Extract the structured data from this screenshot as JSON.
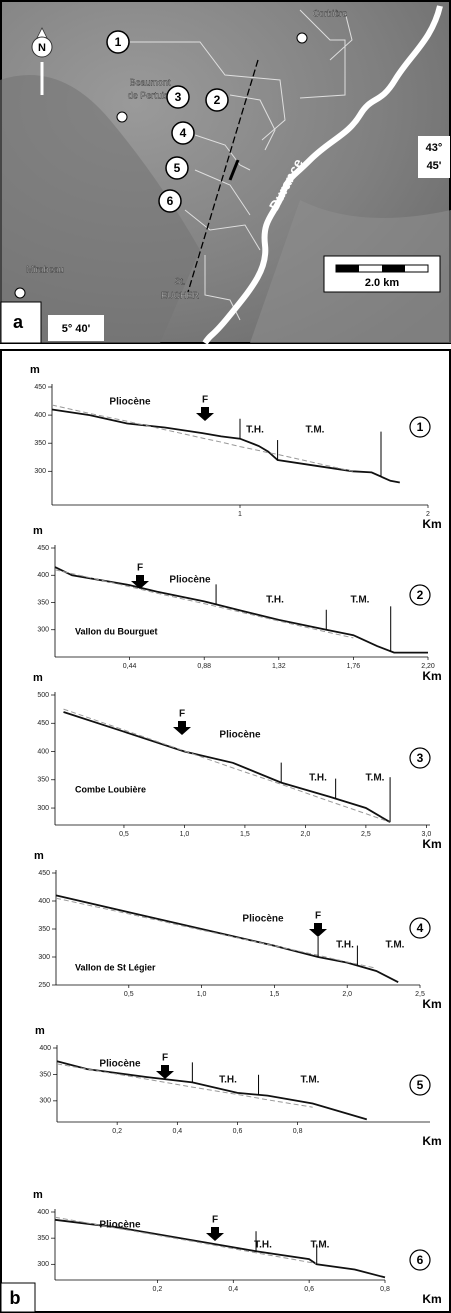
{
  "map": {
    "panel": "a",
    "north": "N",
    "places": [
      "Corbière",
      "Beaumont",
      "de Pertuis",
      "Mirabeau",
      "St.",
      "EUCHER"
    ],
    "river": "Durance",
    "latitude": [
      "43°",
      "45'"
    ],
    "longitude": "5° 40'",
    "scale": "2.0 km",
    "sites": [
      "1",
      "2",
      "3",
      "4",
      "5",
      "6"
    ]
  },
  "panel_b": "b",
  "chart_data": [
    {
      "type": "line",
      "number": "1",
      "ylabel": "m",
      "xlabel": "Km",
      "x": [
        0,
        0.2,
        0.4,
        0.6,
        0.8,
        0.9,
        1.0,
        1.1,
        1.15,
        1.2,
        1.4,
        1.6,
        1.7,
        1.8,
        1.85
      ],
      "series": [
        {
          "color": "#111111",
          "values": [
            410,
            400,
            385,
            378,
            368,
            362,
            358,
            345,
            335,
            320,
            310,
            300,
            298,
            283,
            280
          ]
        },
        {
          "color": "#999999",
          "dashed": true,
          "values": [
            418,
            403,
            389,
            374,
            359,
            352,
            344,
            337,
            333,
            330,
            315,
            300,
            null,
            null,
            null
          ]
        }
      ],
      "xlim": [
        0,
        2
      ],
      "ylim": [
        240,
        450
      ],
      "xticks": [
        1,
        2
      ],
      "yticks": [
        300,
        350,
        400,
        450
      ],
      "boundaries": [
        1.0,
        1.2,
        1.75
      ],
      "annotations": [
        "Pliocène",
        "F",
        "T.H.",
        "T.M."
      ]
    },
    {
      "type": "line",
      "number": "2",
      "ylabel": "m",
      "xlabel": "Km",
      "site": "Vallon du Bourguet",
      "x": [
        0,
        0.1,
        0.44,
        0.6,
        0.88,
        1.1,
        1.32,
        1.6,
        1.76,
        1.9,
        2.0,
        2.2
      ],
      "series": [
        {
          "color": "#111111",
          "values": [
            415,
            400,
            382,
            370,
            352,
            335,
            318,
            300,
            290,
            270,
            258,
            258
          ]
        },
        {
          "color": "#999999",
          "dashed": true,
          "values": [
            410,
            403,
            379,
            367,
            348,
            332,
            316,
            296,
            285,
            null,
            null,
            null
          ]
        }
      ],
      "xlim": [
        0,
        2.2
      ],
      "ylim": [
        250,
        450
      ],
      "xticks": [
        {
          "value": 0.44,
          "label": "0,44"
        },
        {
          "value": 0.88,
          "label": "0,88"
        },
        {
          "value": 1.32,
          "label": "1,32"
        },
        {
          "value": 1.76,
          "label": "1,76"
        },
        {
          "value": 2.2,
          "label": "2,20"
        }
      ],
      "yticks": [
        300,
        350,
        400,
        450
      ],
      "boundaries": [
        0.95,
        1.6,
        1.98
      ],
      "annotations": [
        "F",
        "Pliocène",
        "T.H.",
        "T.M."
      ]
    },
    {
      "type": "line",
      "number": "3",
      "ylabel": "m",
      "xlabel": "Km",
      "site": "Combe Loubière",
      "x": [
        0,
        0.5,
        1.0,
        1.4,
        1.8,
        2.2,
        2.5,
        2.7
      ],
      "series": [
        {
          "color": "#111111",
          "values": [
            470,
            435,
            400,
            380,
            345,
            320,
            300,
            275
          ]
        },
        {
          "color": "#999999",
          "dashed": true,
          "values": [
            475,
            438,
            401,
            371,
            342,
            312,
            290,
            275
          ]
        }
      ],
      "xlim": [
        -0.07,
        3.03
      ],
      "ylim": [
        270,
        500
      ],
      "xticks": [
        {
          "value": 0.5,
          "label": "0,5"
        },
        {
          "value": 1.0,
          "label": "1,0"
        },
        {
          "value": 1.5,
          "label": "1,5"
        },
        {
          "value": 2.0,
          "label": "2,0"
        },
        {
          "value": 2.5,
          "label": "2,5"
        },
        {
          "value": 3.0,
          "label": "3,0"
        }
      ],
      "yticks": [
        300,
        350,
        400,
        450,
        500
      ],
      "boundaries": [
        1.8,
        2.25,
        2.7
      ],
      "annotations": [
        "F",
        "Pliocène",
        "T.H.",
        "T.M."
      ]
    },
    {
      "type": "line",
      "number": "4",
      "ylabel": "m",
      "xlabel": "Km",
      "site": "Vallon de St Légier",
      "x": [
        0,
        0.5,
        1.0,
        1.5,
        1.8,
        2.0,
        2.2,
        2.35
      ],
      "series": [
        {
          "color": "#111111",
          "values": [
            410,
            380,
            350,
            320,
            300,
            290,
            275,
            255
          ]
        },
        {
          "color": "#999999",
          "dashed": true,
          "values": [
            405,
            377,
            348,
            320,
            303,
            291,
            280,
            null
          ]
        }
      ],
      "xlim": [
        0,
        2.5
      ],
      "ylim": [
        250,
        450
      ],
      "xticks": [
        {
          "value": 0.5,
          "label": "0,5"
        },
        {
          "value": 1.0,
          "label": "1,0"
        },
        {
          "value": 1.5,
          "label": "1,5"
        },
        {
          "value": 2.0,
          "label": "2,0"
        },
        {
          "value": 2.5,
          "label": "2,5"
        }
      ],
      "yticks": [
        250,
        300,
        350,
        400,
        450
      ],
      "boundaries": [
        1.8,
        2.07
      ],
      "annotations": [
        "Pliocène",
        "F",
        "T.H.",
        "T.M."
      ]
    },
    {
      "type": "line",
      "number": "5",
      "ylabel": "m",
      "xlabel": "Km",
      "x": [
        0,
        0.1,
        0.3,
        0.45,
        0.6,
        0.7,
        0.85,
        1.03
      ],
      "series": [
        {
          "color": "#111111",
          "values": [
            375,
            360,
            345,
            335,
            315,
            310,
            295,
            265
          ]
        },
        {
          "color": "#999999",
          "dashed": true,
          "values": [
            370,
            360,
            341,
            326,
            312,
            302,
            288,
            null
          ]
        }
      ],
      "xlim": [
        0,
        1.24
      ],
      "ylim": [
        260,
        400
      ],
      "xticks": [
        {
          "value": 0.2,
          "label": "0,2"
        },
        {
          "value": 0.4,
          "label": "0,4"
        },
        {
          "value": 0.6,
          "label": "0,6"
        },
        {
          "value": 0.8,
          "label": "0,8"
        }
      ],
      "yticks": [
        300,
        350,
        400
      ],
      "boundaries": [
        0.45,
        0.67
      ],
      "annotations": [
        "Pliocène",
        "F",
        "T.H.",
        "T.M."
      ]
    },
    {
      "type": "line",
      "number": "6",
      "ylabel": "m",
      "xlabel": "Km",
      "x": [
        -0.07,
        0.1,
        0.3,
        0.46,
        0.6,
        0.62,
        0.72,
        0.8
      ],
      "series": [
        {
          "color": "#111111",
          "values": [
            385,
            370,
            345,
            325,
            310,
            300,
            290,
            275
          ]
        },
        {
          "color": "#999999",
          "dashed": true,
          "values": [
            390,
            368,
            343,
            322,
            304,
            302,
            null,
            null
          ]
        }
      ],
      "xlim": [
        -0.07,
        0.8
      ],
      "ylim": [
        270,
        400
      ],
      "xticks": [
        {
          "value": 0.2,
          "label": "0,2"
        },
        {
          "value": 0.4,
          "label": "0,4"
        },
        {
          "value": 0.6,
          "label": "0,6"
        },
        {
          "value": 0.8,
          "label": "0,8"
        }
      ],
      "yticks": [
        300,
        350,
        400
      ],
      "boundaries": [
        0.46,
        0.62
      ],
      "annotations": [
        "Pliocène",
        "F",
        "T.H.",
        "T.M."
      ]
    }
  ]
}
